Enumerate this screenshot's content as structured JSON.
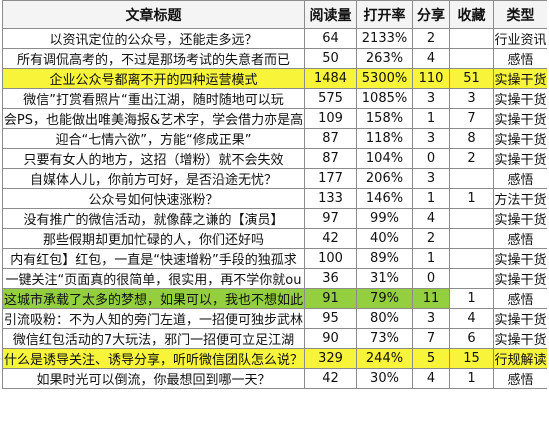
{
  "headers": {
    "title": "文章标题",
    "reads": "阅读量",
    "open_rate": "打开率",
    "shares": "分享",
    "favorites": "收藏",
    "type": "类型"
  },
  "rows": [
    {
      "title": "以资讯定位的公众号，还能走多远？",
      "reads": "64",
      "open_rate": "2133%",
      "shares": "2",
      "favorites": "",
      "type": "行业资讯",
      "highlight": "none"
    },
    {
      "title": "所有调侃高考的，不过是那场考试的失意者而已",
      "reads": "50",
      "open_rate": "263%",
      "shares": "4",
      "favorites": "",
      "type": "感悟",
      "highlight": "none"
    },
    {
      "title": "企业公众号都离不开的四种运营模式",
      "reads": "1484",
      "open_rate": "5300%",
      "shares": "110",
      "favorites": "51",
      "type": "实操干货",
      "highlight": "yellow"
    },
    {
      "title": "微信”打赏看照片“重出江湖，随时随地可以玩",
      "reads": "575",
      "open_rate": "1085%",
      "shares": "3",
      "favorites": "3",
      "type": "实操干货",
      "highlight": "none"
    },
    {
      "title": "会PS，也能做出唯美海报&艺术字，学会借力亦是高",
      "reads": "109",
      "open_rate": "158%",
      "shares": "1",
      "favorites": "7",
      "type": "实操干货",
      "highlight": "none"
    },
    {
      "title": "迎合“七情六欲”，方能“修成正果”",
      "reads": "87",
      "open_rate": "118%",
      "shares": "3",
      "favorites": "8",
      "type": "实操干货",
      "highlight": "none"
    },
    {
      "title": "只要有女人的地方，这招（增粉）就不会失效",
      "reads": "87",
      "open_rate": "104%",
      "shares": "0",
      "favorites": "2",
      "type": "实操干货",
      "highlight": "none"
    },
    {
      "title": "自媒体人儿，你前方可好，是否沿途无忧？",
      "reads": "177",
      "open_rate": "206%",
      "shares": "3",
      "favorites": "",
      "type": "感悟",
      "highlight": "none"
    },
    {
      "title": "公众号如何快速涨粉？",
      "reads": "133",
      "open_rate": "146%",
      "shares": "1",
      "favorites": "1",
      "type": "方法干货",
      "highlight": "none"
    },
    {
      "title": "没有推广的微信活动，就像薛之谦的【演员】",
      "reads": "97",
      "open_rate": "99%",
      "shares": "4",
      "favorites": "",
      "type": "实操干货",
      "highlight": "none"
    },
    {
      "title": "那些假期却更加忙碌的人，你们还好吗",
      "reads": "42",
      "open_rate": "40%",
      "shares": "2",
      "favorites": "",
      "type": "感悟",
      "highlight": "none"
    },
    {
      "title": "内有红包】红包，一直是“快速增粉”手段的独孤求",
      "reads": "100",
      "open_rate": "89%",
      "shares": "1",
      "favorites": "",
      "type": "实操干货",
      "highlight": "none"
    },
    {
      "title": "一键关注“页面真的很简单，很实用，再不学你就ou",
      "reads": "36",
      "open_rate": "31%",
      "shares": "0",
      "favorites": "",
      "type": "实操干货",
      "highlight": "none"
    },
    {
      "title": "这城市承载了太多的梦想，如果可以，我也不想如此",
      "reads": "91",
      "open_rate": "79%",
      "shares": "11",
      "favorites": "1",
      "type": "感悟",
      "highlight": "green"
    },
    {
      "title": "引流吸粉：不为人知的旁门左道，一招便可独步武林",
      "reads": "95",
      "open_rate": "80%",
      "shares": "3",
      "favorites": "4",
      "type": "实操干货",
      "highlight": "none"
    },
    {
      "title": "微信红包活动的7大玩法，邪门一招便可立足江湖",
      "reads": "90",
      "open_rate": "73%",
      "shares": "7",
      "favorites": "6",
      "type": "实操干货",
      "highlight": "none"
    },
    {
      "title": "什么是诱导关注、诱导分享，听听微信团队怎么说？",
      "reads": "329",
      "open_rate": "244%",
      "shares": "5",
      "favorites": "15",
      "type": "行规解读",
      "highlight": "yellow"
    },
    {
      "title": "如果时光可以倒流，你最想回到哪一天？",
      "reads": "42",
      "open_rate": "30%",
      "shares": "4",
      "favorites": "1",
      "type": "感悟",
      "highlight": "none"
    }
  ]
}
